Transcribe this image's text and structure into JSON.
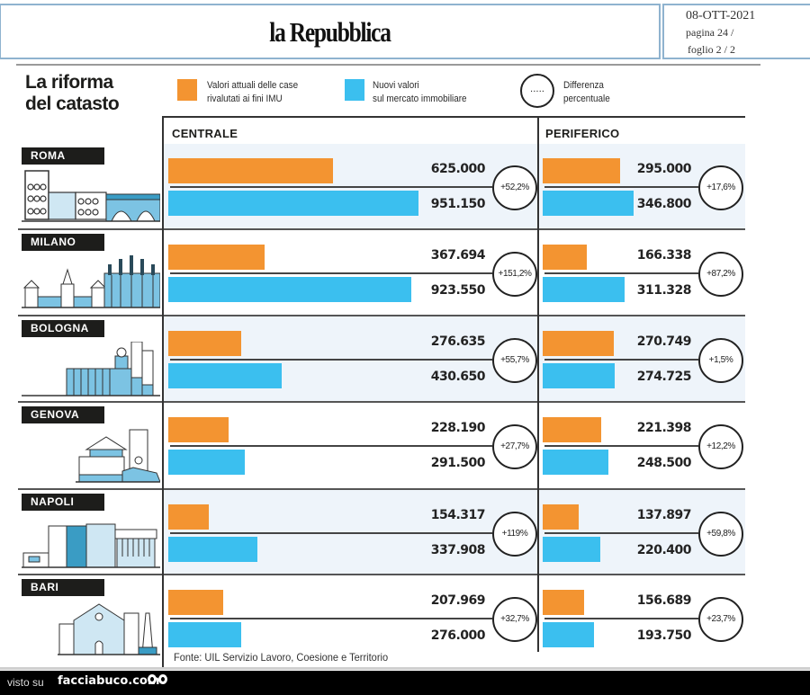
{
  "header": {
    "newspaper": "la Repubblica",
    "date": "08-OTT-2021",
    "page": "pagina 24 /",
    "sheet": "foglio  2 / 2"
  },
  "infographic": {
    "title_line1": "La riforma",
    "title_line2": "del catasto",
    "legend": [
      {
        "label_line1": "Valori attuali delle case",
        "label_line2": "rivalutati ai fini IMU",
        "color": "#f39431"
      },
      {
        "label_line1": "Nuovi valori",
        "label_line2": "sul mercato immobiliare",
        "color": "#3bbfef"
      },
      {
        "label_line1": "Differenza",
        "label_line2": "percentuale",
        "symbol": "....."
      }
    ],
    "source": "Fonte: UIL Servizio Lavoro, Coesione e Territorio"
  },
  "chart_data": {
    "type": "bar",
    "title": "La riforma del catasto",
    "orientation": "horizontal",
    "panels": [
      "CENTRALE",
      "PERIFERICO"
    ],
    "categories": [
      "ROMA",
      "MILANO",
      "BOLOGNA",
      "GENOVA",
      "NAPOLI",
      "BARI"
    ],
    "series": [
      {
        "name": "Valori attuali delle case rivalutati ai fini IMU",
        "color": "#f39431",
        "centrale": [
          625000,
          367694,
          276635,
          228190,
          154317,
          207969
        ],
        "periferico": [
          295000,
          166338,
          270749,
          221398,
          137897,
          156689
        ],
        "centrale_labels": [
          "625.000",
          "367.694",
          "276.635",
          "228.190",
          "154.317",
          "207.969"
        ],
        "periferico_labels": [
          "295.000",
          "166.338",
          "270.749",
          "221.398",
          "137.897",
          "156.689"
        ]
      },
      {
        "name": "Nuovi valori sul mercato immobiliare",
        "color": "#3bbfef",
        "centrale": [
          951150,
          923550,
          430650,
          291500,
          337908,
          276000
        ],
        "periferico": [
          346800,
          311328,
          274725,
          248500,
          220400,
          193750
        ],
        "centrale_labels": [
          "951.150",
          "923.550",
          "430.650",
          "291.500",
          "337.908",
          "276.000"
        ],
        "periferico_labels": [
          "346.800",
          "311.328",
          "274.725",
          "248.500",
          "220.400",
          "193.750"
        ]
      }
    ],
    "differenza_percentuale": {
      "centrale": [
        "+52,2%",
        "+151,2%",
        "+55,7%",
        "+27,7%",
        "+119%",
        "+32,7%"
      ],
      "periferico": [
        "+17,6%",
        "+87,2%",
        "+1,5%",
        "+12,2%",
        "+59,8%",
        "+23,7%"
      ]
    },
    "xlim": [
      0,
      1000000
    ],
    "grid": false,
    "legend_position": "top"
  },
  "footer": {
    "prefix": "visto su",
    "site": "facciabuco.com"
  }
}
